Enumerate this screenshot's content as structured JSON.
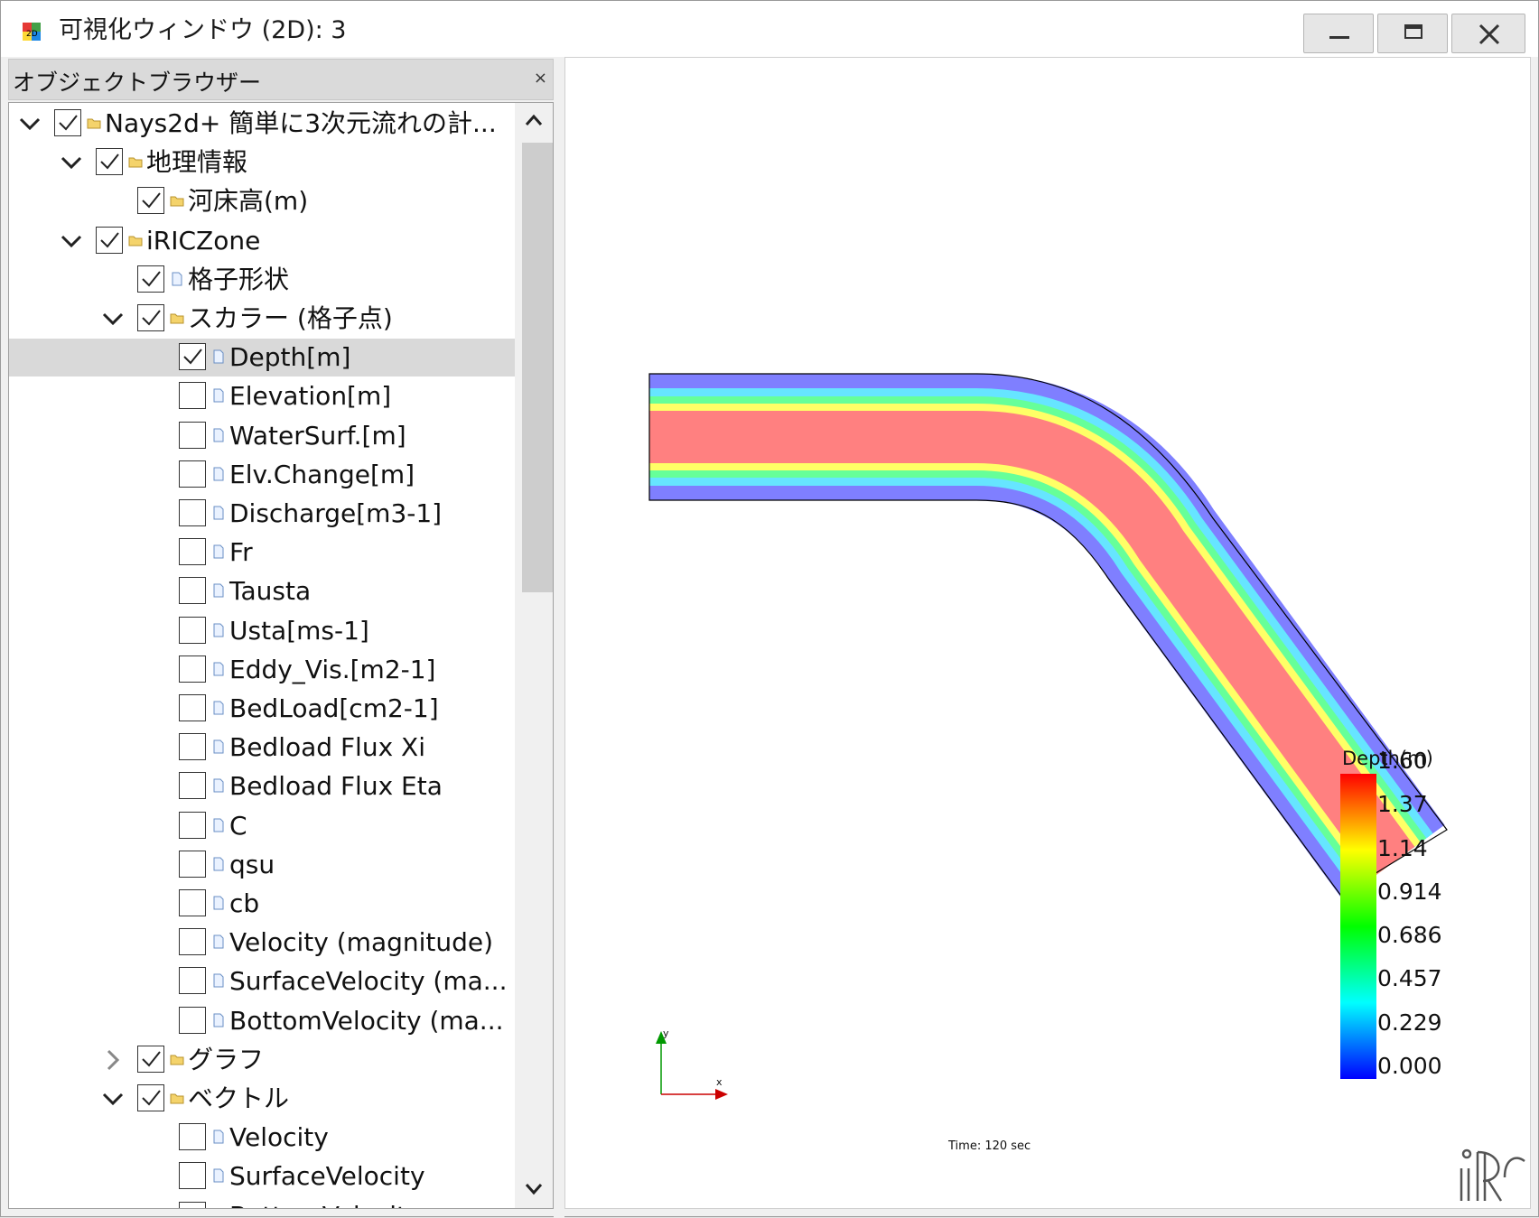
{
  "window": {
    "title": "可視化ウィンドウ (2D): 3",
    "icon": "2d-visualization-icon"
  },
  "object_browser": {
    "title": "オブジェクトブラウザー",
    "close_glyph": "×",
    "tree": [
      {
        "label": "Nays2d+ 簡単に3次元流れの計...",
        "level": 0,
        "expand": "expanded",
        "checked": true,
        "icon": "folder"
      },
      {
        "label": "地理情報",
        "level": 1,
        "expand": "expanded",
        "checked": true,
        "icon": "folder"
      },
      {
        "label": "河床高(m)",
        "level": 2,
        "expand": "none",
        "checked": true,
        "icon": "folder"
      },
      {
        "label": "iRICZone",
        "level": 1,
        "expand": "expanded",
        "checked": true,
        "icon": "folder"
      },
      {
        "label": "格子形状",
        "level": 2,
        "expand": "none",
        "checked": true,
        "icon": "document"
      },
      {
        "label": "スカラー (格子点)",
        "level": 2,
        "expand": "expanded",
        "checked": true,
        "icon": "folder"
      },
      {
        "label": "Depth[m]",
        "level": 3,
        "expand": "none",
        "checked": true,
        "icon": "document",
        "selected": true
      },
      {
        "label": "Elevation[m]",
        "level": 3,
        "expand": "none",
        "checked": false,
        "icon": "document"
      },
      {
        "label": "WaterSurf.[m]",
        "level": 3,
        "expand": "none",
        "checked": false,
        "icon": "document"
      },
      {
        "label": "Elv.Change[m]",
        "level": 3,
        "expand": "none",
        "checked": false,
        "icon": "document"
      },
      {
        "label": "Discharge[m3-1]",
        "level": 3,
        "expand": "none",
        "checked": false,
        "icon": "document"
      },
      {
        "label": "Fr",
        "level": 3,
        "expand": "none",
        "checked": false,
        "icon": "document"
      },
      {
        "label": "Tausta",
        "level": 3,
        "expand": "none",
        "checked": false,
        "icon": "document"
      },
      {
        "label": "Usta[ms-1]",
        "level": 3,
        "expand": "none",
        "checked": false,
        "icon": "document"
      },
      {
        "label": "Eddy_Vis.[m2-1]",
        "level": 3,
        "expand": "none",
        "checked": false,
        "icon": "document"
      },
      {
        "label": "BedLoad[cm2-1]",
        "level": 3,
        "expand": "none",
        "checked": false,
        "icon": "document"
      },
      {
        "label": "Bedload Flux Xi",
        "level": 3,
        "expand": "none",
        "checked": false,
        "icon": "document"
      },
      {
        "label": "Bedload Flux Eta",
        "level": 3,
        "expand": "none",
        "checked": false,
        "icon": "document"
      },
      {
        "label": "C",
        "level": 3,
        "expand": "none",
        "checked": false,
        "icon": "document"
      },
      {
        "label": "qsu",
        "level": 3,
        "expand": "none",
        "checked": false,
        "icon": "document"
      },
      {
        "label": "cb",
        "level": 3,
        "expand": "none",
        "checked": false,
        "icon": "document"
      },
      {
        "label": "Velocity (magnitude)",
        "level": 3,
        "expand": "none",
        "checked": false,
        "icon": "document"
      },
      {
        "label": "SurfaceVelocity (ma...",
        "level": 3,
        "expand": "none",
        "checked": false,
        "icon": "document"
      },
      {
        "label": "BottomVelocity (ma...",
        "level": 3,
        "expand": "none",
        "checked": false,
        "icon": "document"
      },
      {
        "label": "グラフ",
        "level": 2,
        "expand": "collapsed",
        "checked": true,
        "icon": "folder"
      },
      {
        "label": "ベクトル",
        "level": 2,
        "expand": "expanded",
        "checked": true,
        "icon": "folder"
      },
      {
        "label": "Velocity",
        "level": 3,
        "expand": "none",
        "checked": false,
        "icon": "document"
      },
      {
        "label": "SurfaceVelocity",
        "level": 3,
        "expand": "none",
        "checked": false,
        "icon": "document"
      },
      {
        "label": "BottomVelocity",
        "level": 3,
        "expand": "none",
        "checked": false,
        "icon": "document"
      }
    ]
  },
  "viewport": {
    "legend": {
      "title": "Depth(m)",
      "ticks": [
        "1.60",
        "1.37",
        "1.14",
        "0.914",
        "0.686",
        "0.457",
        "0.229",
        "0.000"
      ],
      "min": 0.0,
      "max": 1.6,
      "colors": [
        "#0000ff",
        "#00ffff",
        "#00ff00",
        "#ffff00",
        "#ff0000"
      ]
    },
    "time_label": "Time:  120 sec",
    "axes": {
      "x_label": "x",
      "y_label": "y",
      "x_color": "#cc0000",
      "y_color": "#009900"
    },
    "channel_colors": {
      "edge": "#7f7fff",
      "mid_low": "#66e5ff",
      "mid": "#66ff99",
      "mid_high": "#ffff66",
      "center": "#ff8080"
    },
    "logo": "iric-logo"
  }
}
